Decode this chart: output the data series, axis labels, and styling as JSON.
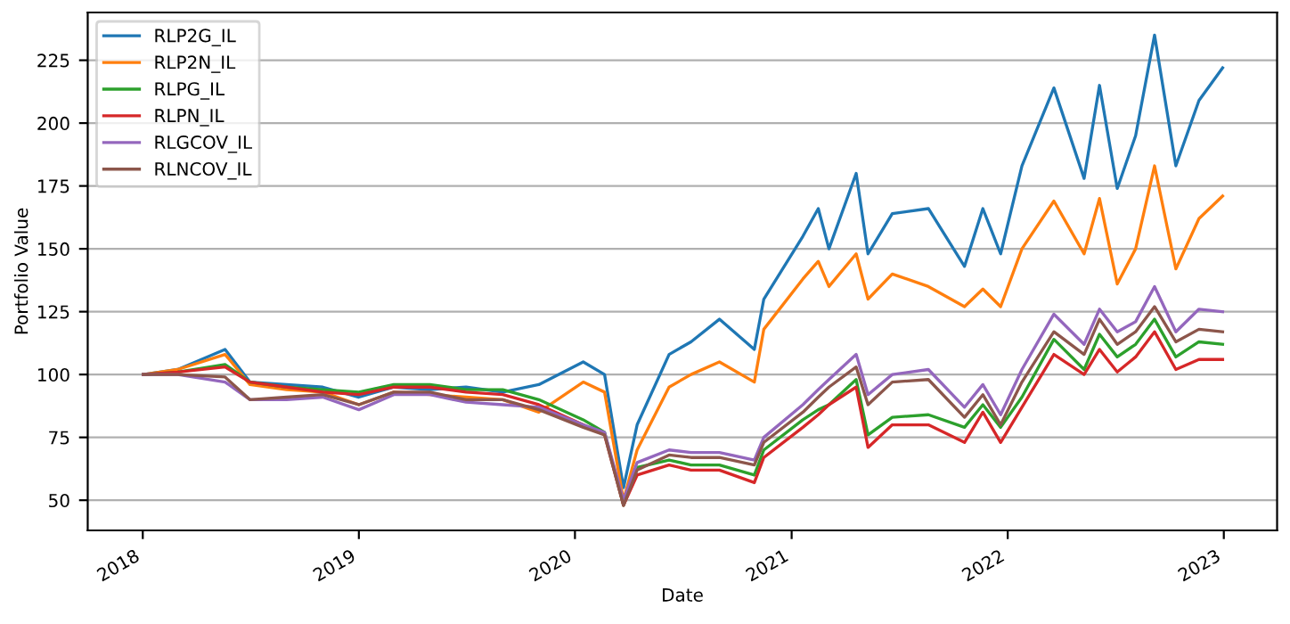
{
  "chart_data": {
    "type": "line",
    "xlabel": "Date",
    "ylabel": "Portfolio Value",
    "x": [
      "2018-01-02",
      "2018-03-01",
      "2018-05-20",
      "2018-07-01",
      "2018-09-01",
      "2018-11-01",
      "2019-01-01",
      "2019-03-01",
      "2019-05-01",
      "2019-07-01",
      "2019-09-01",
      "2019-11-01",
      "2020-01-15",
      "2020-02-20",
      "2020-03-23",
      "2020-04-15",
      "2020-06-08",
      "2020-07-15",
      "2020-09-01",
      "2020-10-30",
      "2020-11-15",
      "2021-01-20",
      "2021-02-15",
      "2021-03-05",
      "2021-04-20",
      "2021-05-10",
      "2021-06-20",
      "2021-08-20",
      "2021-10-20",
      "2021-11-20",
      "2021-12-20",
      "2022-01-25",
      "2022-03-20",
      "2022-05-10",
      "2022-06-05",
      "2022-07-05",
      "2022-08-05",
      "2022-09-06",
      "2022-10-12",
      "2022-11-20",
      "2022-12-30"
    ],
    "series": [
      {
        "name": "RLP2G_IL",
        "color": "#1f77b4",
        "values": [
          100,
          102,
          110,
          97,
          96,
          95,
          91,
          95,
          94,
          95,
          93,
          96,
          105,
          100,
          55,
          80,
          108,
          113,
          122,
          110,
          130,
          155,
          166,
          150,
          180,
          148,
          164,
          166,
          143,
          166,
          148,
          183,
          214,
          178,
          215,
          174,
          195,
          235,
          183,
          209,
          222
        ]
      },
      {
        "name": "RLP2N_IL",
        "color": "#ff7f0e",
        "values": [
          100,
          102,
          108,
          96,
          94,
          93,
          88,
          93,
          92,
          91,
          90,
          85,
          97,
          93,
          50,
          70,
          95,
          100,
          105,
          97,
          118,
          138,
          145,
          135,
          148,
          130,
          140,
          135,
          127,
          134,
          127,
          150,
          169,
          148,
          170,
          136,
          150,
          183,
          142,
          162,
          171
        ]
      },
      {
        "name": "RLPG_IL",
        "color": "#2ca02c",
        "values": [
          100,
          101,
          104,
          97,
          95,
          94,
          93,
          96,
          96,
          94,
          94,
          90,
          82,
          77,
          48,
          63,
          66,
          64,
          64,
          60,
          70,
          82,
          86,
          88,
          98,
          76,
          83,
          84,
          79,
          88,
          79,
          91,
          114,
          102,
          116,
          107,
          112,
          122,
          107,
          113,
          112
        ]
      },
      {
        "name": "RLPN_IL",
        "color": "#d62728",
        "values": [
          100,
          101,
          103,
          97,
          95,
          93,
          92,
          95,
          95,
          93,
          92,
          88,
          80,
          76,
          48,
          60,
          64,
          62,
          62,
          57,
          67,
          79,
          84,
          88,
          95,
          71,
          80,
          80,
          73,
          85,
          73,
          87,
          108,
          100,
          110,
          101,
          107,
          117,
          102,
          106,
          106
        ]
      },
      {
        "name": "RLGCOV_IL",
        "color": "#9467bd",
        "values": [
          100,
          100,
          97,
          90,
          90,
          91,
          86,
          92,
          92,
          89,
          88,
          87,
          80,
          77,
          50,
          65,
          70,
          69,
          69,
          66,
          75,
          88,
          94,
          98,
          108,
          92,
          100,
          102,
          87,
          96,
          84,
          102,
          124,
          112,
          126,
          117,
          121,
          135,
          117,
          126,
          125
        ]
      },
      {
        "name": "RLNCOV_IL",
        "color": "#8c564b",
        "values": [
          100,
          100,
          99,
          90,
          91,
          92,
          88,
          93,
          93,
          90,
          90,
          86,
          79,
          76,
          48,
          62,
          68,
          67,
          67,
          64,
          73,
          85,
          91,
          95,
          103,
          88,
          97,
          98,
          83,
          92,
          80,
          97,
          117,
          108,
          122,
          112,
          117,
          127,
          113,
          118,
          117
        ]
      }
    ],
    "xlim": [
      "2017-09-30",
      "2023-04-01"
    ],
    "xticks": [
      {
        "value": "2018-01-01",
        "label": "2018"
      },
      {
        "value": "2019-01-01",
        "label": "2019"
      },
      {
        "value": "2020-01-01",
        "label": "2020"
      },
      {
        "value": "2021-01-01",
        "label": "2021"
      },
      {
        "value": "2022-01-01",
        "label": "2022"
      },
      {
        "value": "2023-01-01",
        "label": "2023"
      }
    ],
    "ylim": [
      38,
      244
    ],
    "yticks": [
      50,
      75,
      100,
      125,
      150,
      175,
      200,
      225
    ],
    "grid": "y",
    "legend": "top left",
    "marker": "none",
    "line_style": "solid"
  }
}
